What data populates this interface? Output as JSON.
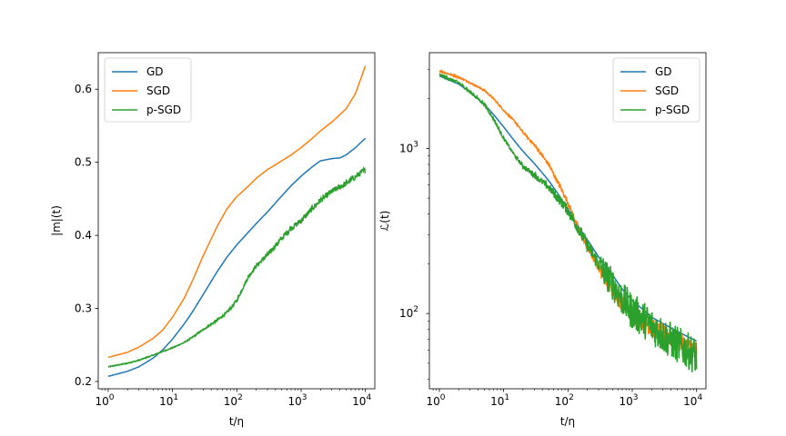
{
  "chart_data": [
    {
      "type": "line",
      "xscale": "log",
      "yscale": "linear",
      "xlabel": "t/η",
      "ylabel": "|m|(t)",
      "xlim": [
        0.7,
        14000
      ],
      "ylim": [
        0.19,
        0.65
      ],
      "xticks": [
        {
          "value": 1,
          "base": "10",
          "exp": "0"
        },
        {
          "value": 10,
          "base": "10",
          "exp": "1"
        },
        {
          "value": 100,
          "base": "10",
          "exp": "2"
        },
        {
          "value": 1000,
          "base": "10",
          "exp": "3"
        },
        {
          "value": 10000,
          "base": "10",
          "exp": "4"
        }
      ],
      "yticks": [
        {
          "value": 0.2,
          "label": "0.2"
        },
        {
          "value": 0.3,
          "label": "0.3"
        },
        {
          "value": 0.4,
          "label": "0.4"
        },
        {
          "value": 0.5,
          "label": "0.5"
        },
        {
          "value": 0.6,
          "label": "0.6"
        }
      ],
      "legend": "upper-left",
      "series": [
        {
          "name": "GD",
          "color": "#1f77b4",
          "noise": 0,
          "x": [
            1,
            1.5,
            2,
            3,
            5,
            7,
            10,
            15,
            20,
            30,
            50,
            70,
            100,
            150,
            200,
            300,
            500,
            700,
            1000,
            1500,
            2000,
            3000,
            4000,
            5000,
            7000,
            10000
          ],
          "y": [
            0.207,
            0.211,
            0.214,
            0.22,
            0.232,
            0.243,
            0.258,
            0.278,
            0.294,
            0.319,
            0.351,
            0.37,
            0.387,
            0.404,
            0.416,
            0.432,
            0.454,
            0.468,
            0.481,
            0.494,
            0.502,
            0.505,
            0.506,
            0.51,
            0.52,
            0.533
          ]
        },
        {
          "name": "SGD",
          "color": "#ff7f0e",
          "noise": 0,
          "x": [
            1,
            1.5,
            2,
            3,
            5,
            7,
            10,
            15,
            20,
            30,
            50,
            70,
            100,
            150,
            200,
            300,
            500,
            700,
            1000,
            1500,
            2000,
            3000,
            5000,
            7000,
            10000
          ],
          "y": [
            0.233,
            0.237,
            0.24,
            0.247,
            0.259,
            0.27,
            0.288,
            0.313,
            0.336,
            0.372,
            0.413,
            0.436,
            0.453,
            0.467,
            0.478,
            0.49,
            0.502,
            0.51,
            0.52,
            0.533,
            0.543,
            0.555,
            0.573,
            0.594,
            0.632
          ]
        },
        {
          "name": "p-SGD",
          "color": "#2ca02c",
          "noise": 0.004,
          "x": [
            1,
            2,
            3,
            5,
            7,
            10,
            15,
            20,
            30,
            50,
            70,
            100,
            150,
            200,
            300,
            500,
            700,
            1000,
            1500,
            2000,
            3000,
            5000,
            7000,
            10000
          ],
          "y": [
            0.22,
            0.225,
            0.229,
            0.236,
            0.241,
            0.246,
            0.253,
            0.26,
            0.271,
            0.284,
            0.294,
            0.311,
            0.343,
            0.358,
            0.373,
            0.396,
            0.41,
            0.42,
            0.437,
            0.448,
            0.46,
            0.471,
            0.48,
            0.49
          ]
        }
      ]
    },
    {
      "type": "line",
      "xscale": "log",
      "yscale": "log",
      "xlabel": "t/η",
      "ylabel": "ℒ(t)",
      "xlim": [
        0.7,
        14000
      ],
      "ylim": [
        35,
        3800
      ],
      "xticks": [
        {
          "value": 1,
          "base": "10",
          "exp": "0"
        },
        {
          "value": 10,
          "base": "10",
          "exp": "1"
        },
        {
          "value": 100,
          "base": "10",
          "exp": "2"
        },
        {
          "value": 1000,
          "base": "10",
          "exp": "3"
        },
        {
          "value": 10000,
          "base": "10",
          "exp": "4"
        }
      ],
      "yticks": [
        {
          "value": 100,
          "base": "10",
          "exp": "2"
        },
        {
          "value": 1000,
          "base": "10",
          "exp": "3"
        }
      ],
      "legend": "upper-right",
      "series": [
        {
          "name": "GD",
          "color": "#1f77b4",
          "noise": 0,
          "x": [
            1,
            2,
            3,
            5,
            7,
            10,
            15,
            20,
            30,
            50,
            70,
            100,
            150,
            200,
            300,
            500,
            700,
            1000,
            1500,
            2000,
            3000,
            5000,
            7000,
            10000
          ],
          "y": [
            2750,
            2450,
            2200,
            1850,
            1600,
            1350,
            1100,
            960,
            810,
            640,
            530,
            430,
            330,
            280,
            220,
            170,
            140,
            120,
            105,
            95,
            87,
            78,
            73,
            68
          ]
        },
        {
          "name": "SGD",
          "color": "#ff7f0e",
          "noise": 0.03,
          "x": [
            1,
            2,
            3,
            5,
            7,
            10,
            15,
            20,
            30,
            50,
            70,
            100,
            150,
            200,
            300,
            500,
            700,
            1000,
            1500,
            2000,
            3000,
            5000,
            7000,
            10000
          ],
          "y": [
            2950,
            2700,
            2500,
            2250,
            2000,
            1700,
            1450,
            1250,
            1050,
            800,
            620,
            470,
            320,
            250,
            190,
            140,
            115,
            100,
            90,
            82,
            76,
            68,
            64,
            60
          ]
        },
        {
          "name": "p-SGD",
          "color": "#2ca02c",
          "noise": 0.06,
          "x": [
            1,
            2,
            3,
            5,
            7,
            10,
            15,
            20,
            30,
            50,
            70,
            100,
            150,
            200,
            300,
            500,
            700,
            1000,
            1500,
            2000,
            3000,
            5000,
            7000,
            10000
          ],
          "y": [
            2800,
            2500,
            2200,
            1850,
            1500,
            1150,
            900,
            780,
            690,
            580,
            500,
            420,
            320,
            260,
            200,
            150,
            122,
            103,
            92,
            84,
            74,
            65,
            60,
            55
          ]
        }
      ]
    }
  ]
}
